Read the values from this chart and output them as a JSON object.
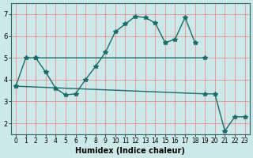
{
  "xlabel": "Humidex (Indice chaleur)",
  "bg_color": "#cce8e8",
  "line_color": "#1a6b6b",
  "grid_color_v": "#f08080",
  "grid_color_h": "#f08080",
  "lineA": {
    "x": [
      0,
      1,
      2,
      19
    ],
    "y": [
      3.7,
      5.0,
      5.0,
      5.0
    ]
  },
  "lineB": {
    "x": [
      2,
      3,
      4,
      5,
      6,
      7,
      8,
      9,
      10,
      11,
      12,
      13,
      14,
      15,
      16,
      17,
      18
    ],
    "y": [
      5.0,
      4.35,
      3.6,
      3.3,
      3.35,
      4.0,
      4.6,
      5.25,
      6.2,
      6.55,
      6.9,
      6.85,
      6.6,
      5.7,
      5.85,
      6.85,
      5.7
    ]
  },
  "lineC": {
    "x": [
      0,
      19,
      20,
      21,
      22,
      23
    ],
    "y": [
      3.7,
      3.35,
      3.35,
      1.65,
      2.3,
      2.3
    ]
  },
  "ylim": [
    1.5,
    7.5
  ],
  "xlim": [
    -0.5,
    23.5
  ],
  "yticks": [
    2,
    3,
    4,
    5,
    6,
    7
  ],
  "xticks": [
    0,
    1,
    2,
    3,
    4,
    5,
    6,
    7,
    8,
    9,
    10,
    11,
    12,
    13,
    14,
    15,
    16,
    17,
    18,
    19,
    20,
    21,
    22,
    23
  ]
}
